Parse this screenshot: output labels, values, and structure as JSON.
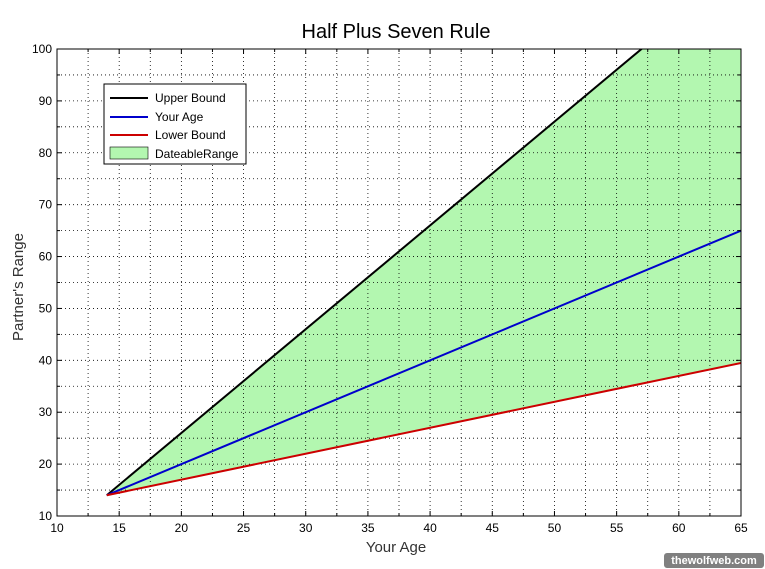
{
  "chart_data": {
    "type": "line",
    "title": "Half Plus Seven Rule",
    "xlabel": "Your Age",
    "ylabel": "Partner's Range",
    "xlim": [
      10,
      65
    ],
    "ylim": [
      10,
      100
    ],
    "xticks": [
      10,
      15,
      20,
      25,
      30,
      35,
      40,
      45,
      50,
      55,
      60,
      65
    ],
    "yticks": [
      10,
      20,
      30,
      40,
      50,
      60,
      70,
      80,
      90,
      100
    ],
    "grid": true,
    "legend_position": "top-left",
    "x": [
      14,
      65
    ],
    "series": [
      {
        "name": "Upper Bound",
        "x": [
          14,
          65
        ],
        "values": [
          14,
          116
        ],
        "color": "#000000"
      },
      {
        "name": "Your Age",
        "x": [
          14,
          65
        ],
        "values": [
          14,
          65
        ],
        "color": "#0000cc"
      },
      {
        "name": "Lower Bound",
        "x": [
          14,
          65
        ],
        "values": [
          14,
          39.5
        ],
        "color": "#cc0000"
      }
    ],
    "area": {
      "name": "DateableRange",
      "between": [
        "Lower Bound",
        "Upper Bound"
      ],
      "color": "#b3f7b0"
    },
    "watermark": "thewolfweb.com"
  }
}
